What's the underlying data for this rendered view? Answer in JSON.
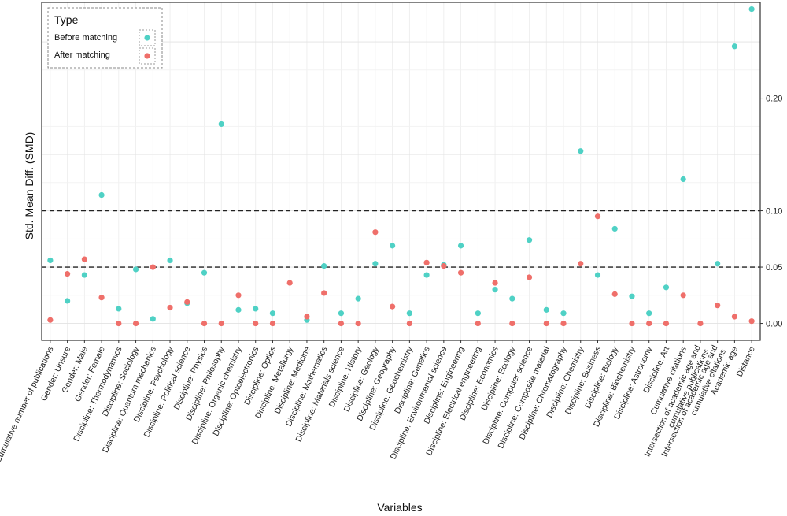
{
  "chart_data": {
    "type": "scatter",
    "xlabel": "Variables",
    "ylabel": "Std. Mean Diff. (SMD)",
    "ylim": [
      -0.015,
      0.285
    ],
    "yticks": [
      0.0,
      0.05,
      0.1,
      0.2
    ],
    "ytick_labels": [
      "0.00",
      "0.05",
      "0.10",
      "0.20"
    ],
    "reference_lines": [
      0.05,
      0.1
    ],
    "grid": true,
    "legend": {
      "title": "Type",
      "position": "top-left",
      "entries": [
        {
          "label": "Before matching",
          "color": "#4fd1c5"
        },
        {
          "label": "After matching",
          "color": "#ef6f6a"
        }
      ]
    },
    "categories": [
      "Cumulative number of publications",
      "Gender: Unsure",
      "Gender: Male",
      "Gender: Female",
      "Discipline: Thermodynamics",
      "Discipline: Sociology",
      "Discipline: Quantum mechanics",
      "Discipline: Psychology",
      "Discipline: Political science",
      "Discipline: Physics",
      "Discipline: Philosophy",
      "Discipline: Organic chemistry",
      "Discipline: Optoelectronics",
      "Discipline: Optics",
      "Discipline: Metallurgy",
      "Discipline: Medicine",
      "Discipline: Mathematics",
      "Discipline: Materials science",
      "Discipline: History",
      "Discipline: Geology",
      "Discipline: Geography",
      "Discipline: Geochemistry",
      "Discipline: Genetics",
      "Discipline: Environmental science",
      "Discipline: Engineering",
      "Discipline: Electrical engineering",
      "Discipline: Economics",
      "Discipline: Ecology",
      "Discipline: Computer science",
      "Discipline: Composite material",
      "Discipline: Chromatography",
      "Discipline: Chemistry",
      "Discipline: Business",
      "Discipline: Biology",
      "Discipline: Biochemistry",
      "Discipline: Astronomy",
      "Discipline: Art",
      "Cumulative citations",
      "Intersection of academic age and cumulative publications",
      "Intersection of academic age and cumulative citations",
      "Academic age",
      "Distance"
    ],
    "series": [
      {
        "name": "Before matching",
        "color": "#4fd1c5",
        "values": [
          0.056,
          0.02,
          0.043,
          0.114,
          0.013,
          0.048,
          0.004,
          0.056,
          0.018,
          0.045,
          0.177,
          0.012,
          0.013,
          0.009,
          null,
          0.003,
          0.051,
          0.009,
          0.022,
          0.053,
          0.069,
          0.009,
          0.043,
          0.052,
          0.069,
          0.009,
          0.03,
          0.022,
          0.074,
          0.012,
          0.009,
          0.153,
          0.043,
          0.084,
          0.024,
          0.009,
          0.032,
          0.128,
          null,
          0.053,
          0.246,
          0.279
        ]
      },
      {
        "name": "After matching",
        "color": "#ef6f6a",
        "values": [
          0.003,
          0.044,
          0.057,
          0.023,
          0.0,
          0.0,
          0.05,
          0.014,
          0.019,
          0.0,
          0.0,
          0.025,
          0.0,
          0.0,
          0.036,
          0.006,
          0.027,
          0.0,
          0.0,
          0.081,
          0.015,
          0.0,
          0.054,
          0.051,
          0.045,
          0.0,
          0.036,
          0.0,
          0.041,
          0.0,
          0.0,
          0.053,
          0.095,
          0.026,
          0.0,
          0.0,
          0.0,
          0.025,
          0.0,
          0.016,
          0.006,
          0.002
        ]
      }
    ]
  }
}
